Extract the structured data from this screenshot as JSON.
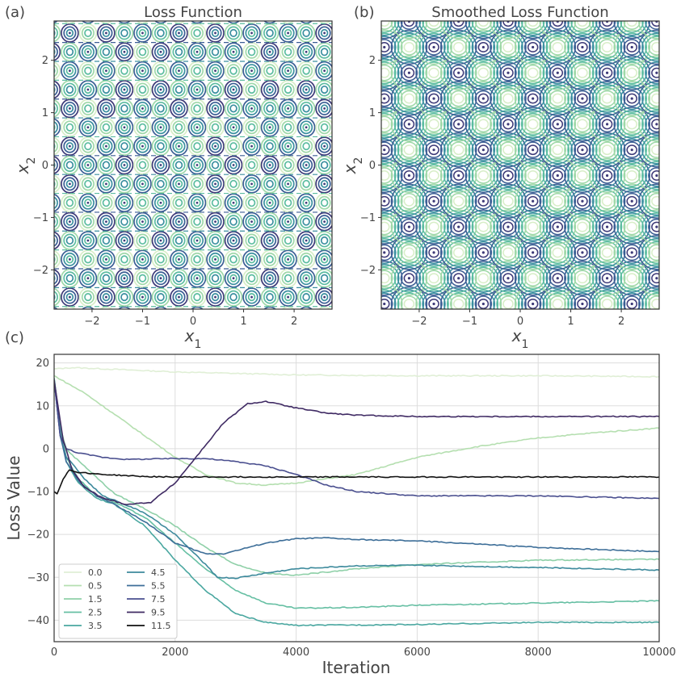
{
  "panels": {
    "a": {
      "letter": "(a)",
      "title": "Loss Function"
    },
    "b": {
      "letter": "(b)",
      "title": "Smoothed Loss Function"
    },
    "c": {
      "letter": "(c)"
    }
  },
  "chart_data": [
    {
      "type": "contour",
      "title": "Loss Function",
      "xlabel": "x1",
      "ylabel": "x2",
      "xlim": [
        -2.75,
        2.75
      ],
      "ylim": [
        -2.75,
        2.75
      ],
      "xticks": [
        -2,
        -1,
        0,
        1,
        2
      ],
      "yticks": [
        -2,
        -1,
        0,
        1,
        2
      ],
      "colormap": [
        "#d8eec8",
        "#9fd8a8",
        "#5bbca0",
        "#3b8fa0",
        "#3b5e94",
        "#3e3a78"
      ],
      "pattern": "dense periodic contour rings"
    },
    {
      "type": "contour",
      "title": "Smoothed Loss Function",
      "xlabel": "x1",
      "ylabel": "x2",
      "xlim": [
        -2.75,
        2.75
      ],
      "ylim": [
        -2.75,
        2.75
      ],
      "xticks": [
        -2,
        -1,
        0,
        1,
        2
      ],
      "yticks": [
        -2,
        -1,
        0,
        1,
        2
      ],
      "colormap": [
        "#d8eec8",
        "#9fd8a8",
        "#5bbca0",
        "#3b8fa0",
        "#3b5e94",
        "#3e3a78"
      ],
      "pattern": "periodic basins and peaks"
    },
    {
      "type": "line",
      "xlabel": "Iteration",
      "ylabel": "Loss Value",
      "xlim": [
        0,
        10000
      ],
      "ylim": [
        -45,
        22
      ],
      "xticks": [
        0,
        2000,
        4000,
        6000,
        8000,
        10000
      ],
      "yticks": [
        20,
        10,
        0,
        -10,
        -20,
        -30,
        -40
      ],
      "grid": true,
      "legend_position": "lower-left",
      "series": [
        {
          "name": "0.0",
          "color": "#e0efd6",
          "points": [
            [
              0,
              18.6
            ],
            [
              300,
              18.9
            ],
            [
              1000,
              18.5
            ],
            [
              2000,
              17.9
            ],
            [
              4000,
              17.2
            ],
            [
              6000,
              17.0
            ],
            [
              8000,
              17.0
            ],
            [
              10000,
              16.8
            ]
          ]
        },
        {
          "name": "0.5",
          "color": "#b5dfb0",
          "points": [
            [
              0,
              17.0
            ],
            [
              500,
              13.0
            ],
            [
              1000,
              8.0
            ],
            [
              1500,
              3.0
            ],
            [
              2000,
              -2.0
            ],
            [
              2500,
              -6.0
            ],
            [
              3000,
              -8.0
            ],
            [
              3500,
              -8.5
            ],
            [
              4000,
              -8.0
            ],
            [
              5000,
              -6.0
            ],
            [
              6000,
              -2.0
            ],
            [
              7000,
              0.5
            ],
            [
              8000,
              2.5
            ],
            [
              9000,
              3.8
            ],
            [
              10000,
              4.8
            ]
          ]
        },
        {
          "name": "1.5",
          "color": "#8fd0a8",
          "points": [
            [
              0,
              16.5
            ],
            [
              100,
              5.0
            ],
            [
              200,
              0.0
            ],
            [
              300,
              -1.5
            ],
            [
              500,
              -4.0
            ],
            [
              800,
              -8.0
            ],
            [
              1000,
              -10.5
            ],
            [
              1500,
              -14.0
            ],
            [
              2000,
              -18.0
            ],
            [
              2500,
              -23.0
            ],
            [
              3000,
              -27.0
            ],
            [
              3500,
              -29.0
            ],
            [
              4000,
              -29.5
            ],
            [
              5000,
              -28.0
            ],
            [
              6000,
              -27.0
            ],
            [
              7000,
              -26.5
            ],
            [
              8000,
              -26.0
            ],
            [
              10000,
              -25.8
            ]
          ]
        },
        {
          "name": "2.5",
          "color": "#66bfa3",
          "points": [
            [
              0,
              16.5
            ],
            [
              100,
              5.0
            ],
            [
              200,
              -2.0
            ],
            [
              400,
              -7.0
            ],
            [
              700,
              -11.0
            ],
            [
              1000,
              -12.5
            ],
            [
              1500,
              -16.0
            ],
            [
              2000,
              -22.0
            ],
            [
              2500,
              -28.0
            ],
            [
              3000,
              -33.0
            ],
            [
              3500,
              -36.0
            ],
            [
              4000,
              -37.2
            ],
            [
              5000,
              -37.0
            ],
            [
              6000,
              -36.5
            ],
            [
              8000,
              -36.0
            ],
            [
              10000,
              -35.5
            ]
          ]
        },
        {
          "name": "3.5",
          "color": "#4aa7a0",
          "points": [
            [
              0,
              16.5
            ],
            [
              100,
              4.0
            ],
            [
              200,
              -3.0
            ],
            [
              400,
              -8.0
            ],
            [
              700,
              -11.5
            ],
            [
              1000,
              -13.0
            ],
            [
              1500,
              -18.0
            ],
            [
              2000,
              -26.0
            ],
            [
              2500,
              -33.0
            ],
            [
              3000,
              -38.5
            ],
            [
              3500,
              -40.5
            ],
            [
              4000,
              -41.2
            ],
            [
              6000,
              -41.0
            ],
            [
              8000,
              -40.5
            ],
            [
              10000,
              -40.5
            ]
          ]
        },
        {
          "name": "4.5",
          "color": "#3d8a9c",
          "points": [
            [
              0,
              16.0
            ],
            [
              100,
              3.0
            ],
            [
              200,
              -2.0
            ],
            [
              300,
              -3.5
            ],
            [
              500,
              -7.0
            ],
            [
              800,
              -11.0
            ],
            [
              1000,
              -12.0
            ],
            [
              1500,
              -15.0
            ],
            [
              2000,
              -20.0
            ],
            [
              2500,
              -27.0
            ],
            [
              2700,
              -30.0
            ],
            [
              3000,
              -30.2
            ],
            [
              3500,
              -29.0
            ],
            [
              4000,
              -28.0
            ],
            [
              5000,
              -27.3
            ],
            [
              6000,
              -27.2
            ],
            [
              8000,
              -27.7
            ],
            [
              10000,
              -28.3
            ]
          ]
        },
        {
          "name": "5.5",
          "color": "#3d6e98",
          "points": [
            [
              0,
              16.0
            ],
            [
              100,
              3.0
            ],
            [
              200,
              -3.0
            ],
            [
              400,
              -7.5
            ],
            [
              700,
              -11.0
            ],
            [
              1000,
              -13.0
            ],
            [
              1500,
              -17.0
            ],
            [
              2000,
              -22.0
            ],
            [
              2500,
              -24.5
            ],
            [
              2800,
              -24.5
            ],
            [
              3500,
              -22.0
            ],
            [
              4000,
              -21.0
            ],
            [
              4500,
              -20.8
            ],
            [
              5000,
              -21.2
            ],
            [
              6000,
              -21.5
            ],
            [
              8000,
              -23.0
            ],
            [
              10000,
              -24.0
            ]
          ]
        },
        {
          "name": "7.5",
          "color": "#4a4f8f",
          "points": [
            [
              0,
              16.0
            ],
            [
              100,
              3.0
            ],
            [
              200,
              0.0
            ],
            [
              400,
              -1.0
            ],
            [
              800,
              -2.0
            ],
            [
              1200,
              -2.5
            ],
            [
              2000,
              -2.3
            ],
            [
              2500,
              -2.3
            ],
            [
              3000,
              -3.0
            ],
            [
              3500,
              -4.0
            ],
            [
              4000,
              -6.0
            ],
            [
              4500,
              -8.5
            ],
            [
              5000,
              -10.0
            ],
            [
              6000,
              -11.0
            ],
            [
              8000,
              -11.0
            ],
            [
              10000,
              -11.6
            ]
          ]
        },
        {
          "name": "9.5",
          "color": "#3f2a63",
          "points": [
            [
              0,
              16.0
            ],
            [
              150,
              2.0
            ],
            [
              300,
              -5.0
            ],
            [
              500,
              -9.0
            ],
            [
              800,
              -11.5
            ],
            [
              1200,
              -13.0
            ],
            [
              1600,
              -12.5
            ],
            [
              2000,
              -8.0
            ],
            [
              2400,
              -1.0
            ],
            [
              2800,
              6.0
            ],
            [
              3200,
              10.5
            ],
            [
              3500,
              11.0
            ],
            [
              4000,
              9.5
            ],
            [
              4500,
              8.3
            ],
            [
              5000,
              7.8
            ],
            [
              6000,
              7.5
            ],
            [
              8000,
              7.5
            ],
            [
              10000,
              7.5
            ]
          ]
        },
        {
          "name": "11.5",
          "color": "#111111",
          "points": [
            [
              0,
              -10.0
            ],
            [
              50,
              -10.5
            ],
            [
              150,
              -7.0
            ],
            [
              250,
              -5.0
            ],
            [
              400,
              -5.5
            ],
            [
              800,
              -6.0
            ],
            [
              1500,
              -6.5
            ],
            [
              2000,
              -6.6
            ],
            [
              4000,
              -6.6
            ],
            [
              10000,
              -6.6
            ]
          ]
        }
      ]
    }
  ]
}
